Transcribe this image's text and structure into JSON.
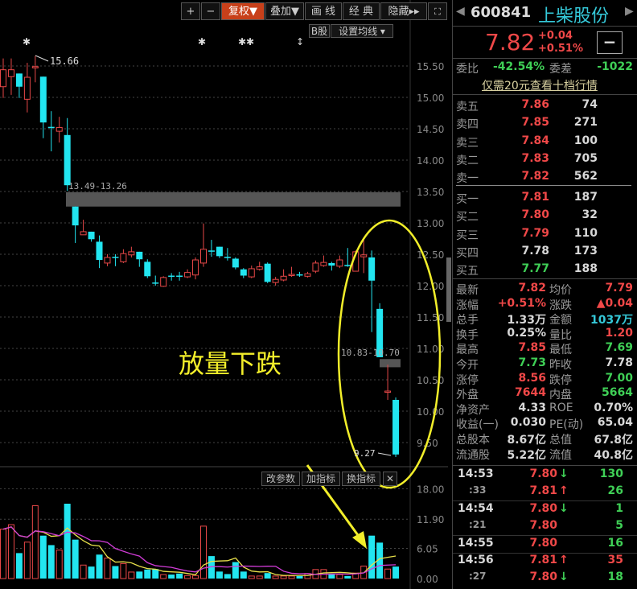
{
  "toolbar": {
    "plus": "+",
    "minus": "−",
    "fuquan": "复权▼",
    "diejia": "叠加▼",
    "huaxian": "画 线",
    "jingdian": "经 典",
    "yincang": "隐藏▸▸",
    "fullscreen_icon": "fullscreen-icon",
    "bgu": "B股",
    "ma_setting": "设置均线 ▾"
  },
  "colors": {
    "up": "#e84848",
    "down": "#22e5f0",
    "ma5": "#e8e04a",
    "ma10": "#d23cd8",
    "annotation": "#f2ee2a",
    "active": "#c8401a"
  },
  "markers": [
    "✱",
    "✱",
    "✱✱",
    "↕"
  ],
  "annotations": {
    "high": "15.66",
    "gap1": "13.49-13.26",
    "gap2": "10.83-10.70",
    "low": "9.27",
    "caption": "放量下跌"
  },
  "volume_buttons": [
    "改参数",
    "加指标",
    "换指标",
    "✕"
  ],
  "chart_data": {
    "type": "candlestick",
    "price_axis": [
      "15.50",
      "15.00",
      "14.50",
      "14.00",
      "13.50",
      "13.00",
      "12.50",
      "12.00",
      "11.50",
      "11.00",
      "10.50",
      "10.00",
      "9.50"
    ],
    "ylim": [
      9.2,
      15.9
    ],
    "volume_axis": [
      "18.00",
      "11.90",
      "6.05",
      "0.00"
    ],
    "volume_ylim": [
      0,
      18
    ],
    "gaps": [
      [
        13.49,
        13.26
      ],
      [
        10.83,
        10.7
      ]
    ],
    "ohlc": [
      [
        15.17,
        15.62,
        14.99,
        15.44
      ],
      [
        15.33,
        15.62,
        15.04,
        15.44
      ],
      [
        15.38,
        15.38,
        14.99,
        15.17
      ],
      [
        14.97,
        15.55,
        14.76,
        15.32
      ],
      [
        15.47,
        15.66,
        15.24,
        15.49
      ],
      [
        15.33,
        15.33,
        14.35,
        14.6
      ],
      [
        14.53,
        14.78,
        14.14,
        14.52
      ],
      [
        14.46,
        14.69,
        14.28,
        14.52
      ],
      [
        14.4,
        14.67,
        13.51,
        13.6
      ],
      [
        13.26,
        13.26,
        12.68,
        12.96
      ],
      [
        12.81,
        13.05,
        12.81,
        12.86
      ],
      [
        12.86,
        12.86,
        12.7,
        12.74
      ],
      [
        12.7,
        12.8,
        12.28,
        12.41
      ],
      [
        12.36,
        12.5,
        12.31,
        12.45
      ],
      [
        12.46,
        12.5,
        12.31,
        12.45
      ],
      [
        12.38,
        12.58,
        12.36,
        12.51
      ],
      [
        12.49,
        12.62,
        12.45,
        12.54
      ],
      [
        12.54,
        12.54,
        12.3,
        12.42
      ],
      [
        12.38,
        12.42,
        12.12,
        12.15
      ],
      [
        12.05,
        12.16,
        12.0,
        12.04
      ],
      [
        11.99,
        12.15,
        11.98,
        12.13
      ],
      [
        12.16,
        12.2,
        12.08,
        12.15
      ],
      [
        12.16,
        12.22,
        12.08,
        12.15
      ],
      [
        12.14,
        12.26,
        12.12,
        12.21
      ],
      [
        12.17,
        12.45,
        12.1,
        12.41
      ],
      [
        12.36,
        12.99,
        12.3,
        12.58
      ],
      [
        12.56,
        12.73,
        12.46,
        12.55
      ],
      [
        12.62,
        12.62,
        12.44,
        12.47
      ],
      [
        12.46,
        12.6,
        12.4,
        12.45
      ],
      [
        12.43,
        12.45,
        12.26,
        12.29
      ],
      [
        12.26,
        12.28,
        12.12,
        12.16
      ],
      [
        12.14,
        12.32,
        12.12,
        12.27
      ],
      [
        12.26,
        12.38,
        12.24,
        12.3
      ],
      [
        12.35,
        12.37,
        12.04,
        12.06
      ],
      [
        12.05,
        12.14,
        12.0,
        12.1
      ],
      [
        12.09,
        12.26,
        12.07,
        12.15
      ],
      [
        12.17,
        12.3,
        12.14,
        12.18
      ],
      [
        12.18,
        12.22,
        12.14,
        12.17
      ],
      [
        12.15,
        12.22,
        12.13,
        12.19
      ],
      [
        12.23,
        12.4,
        12.2,
        12.36
      ],
      [
        12.32,
        12.48,
        12.3,
        12.37
      ],
      [
        12.36,
        12.38,
        12.24,
        12.32
      ],
      [
        12.31,
        12.48,
        12.28,
        12.41
      ],
      [
        12.33,
        12.6,
        12.3,
        12.32
      ],
      [
        12.23,
        12.56,
        12.23,
        12.54
      ],
      [
        12.46,
        12.76,
        12.2,
        12.49
      ],
      [
        12.45,
        12.56,
        11.26,
        12.08
      ],
      [
        11.63,
        11.72,
        10.86,
        10.86
      ],
      [
        10.31,
        10.74,
        10.18,
        10.32
      ],
      [
        10.18,
        10.22,
        9.27,
        9.31
      ]
    ],
    "volume": [
      9.9,
      10.8,
      5.1,
      7.3,
      14.6,
      8.6,
      6.7,
      5.7,
      15.0,
      7.8,
      2.7,
      2.4,
      4.8,
      4.1,
      2.5,
      3.0,
      1.3,
      1.4,
      1.8,
      1.9,
      0.8,
      0.8,
      1.0,
      0.6,
      0.6,
      10.5,
      4.5,
      1.4,
      0.9,
      3.3,
      1.4,
      0.5,
      0.5,
      1.1,
      0.5,
      0.5,
      0.5,
      0.5,
      1.0,
      1.8,
      1.8,
      0.8,
      0.8,
      0.5,
      1.1,
      2.5,
      8.6,
      7.2,
      1.9,
      2.4
    ],
    "grid": true
  },
  "quote": {
    "code": "600841",
    "name": "上柴股份",
    "price": "7.82",
    "change": "+0.04",
    "change_pct": "+0.51%",
    "collapse": "−",
    "weibi_label": "委比",
    "weibi": "-42.54%",
    "weicha_label": "委差",
    "weicha": "-1022",
    "promo_link": "仅需20元查看十档行情"
  },
  "order_book": {
    "sell": [
      {
        "label": "卖五",
        "price": "7.86",
        "vol": "74",
        "color": "red"
      },
      {
        "label": "卖四",
        "price": "7.85",
        "vol": "271",
        "color": "red"
      },
      {
        "label": "卖三",
        "price": "7.84",
        "vol": "100",
        "color": "red"
      },
      {
        "label": "卖二",
        "price": "7.83",
        "vol": "705",
        "color": "red"
      },
      {
        "label": "卖一",
        "price": "7.82",
        "vol": "562",
        "color": "red"
      }
    ],
    "buy": [
      {
        "label": "买一",
        "price": "7.81",
        "vol": "187",
        "color": "red"
      },
      {
        "label": "买二",
        "price": "7.80",
        "vol": "32",
        "color": "red"
      },
      {
        "label": "买三",
        "price": "7.79",
        "vol": "110",
        "color": "red"
      },
      {
        "label": "买四",
        "price": "7.78",
        "vol": "173",
        "color": "white"
      },
      {
        "label": "买五",
        "price": "7.77",
        "vol": "188",
        "color": "green"
      }
    ]
  },
  "stats": [
    {
      "l1": "最新",
      "v1": "7.82",
      "c1": "red",
      "l2": "均价",
      "v2": "7.79",
      "c2": "red"
    },
    {
      "l1": "涨幅",
      "v1": "+0.51%",
      "c1": "red",
      "l2": "涨跌",
      "v2": "▲0.04",
      "c2": "red"
    },
    {
      "l1": "总手",
      "v1": "1.33万",
      "c1": "white",
      "l2": "金额",
      "v2": "1037万",
      "c2": "cyan"
    },
    {
      "l1": "换手",
      "v1": "0.25%",
      "c1": "white",
      "l2": "量比",
      "v2": "1.20",
      "c2": "red"
    },
    {
      "l1": "最高",
      "v1": "7.85",
      "c1": "red",
      "l2": "最低",
      "v2": "7.69",
      "c2": "green"
    },
    {
      "l1": "今开",
      "v1": "7.73",
      "c1": "green",
      "l2": "昨收",
      "v2": "7.78",
      "c2": "white"
    },
    {
      "l1": "涨停",
      "v1": "8.56",
      "c1": "red",
      "l2": "跌停",
      "v2": "7.00",
      "c2": "green"
    },
    {
      "l1": "外盘",
      "v1": "7644",
      "c1": "red",
      "l2": "内盘",
      "v2": "5664",
      "c2": "green"
    },
    {
      "l1": "净资产",
      "v1": "4.33",
      "c1": "white",
      "l2": "ROE",
      "v2": "0.70%",
      "c2": "white"
    },
    {
      "l1": "收益(一)",
      "v1": "0.030",
      "c1": "white",
      "l2": "PE(动)",
      "v2": "65.04",
      "c2": "white"
    },
    {
      "l1": "总股本",
      "v1": "8.67亿",
      "c1": "white",
      "l2": "总值",
      "v2": "67.8亿",
      "c2": "white"
    },
    {
      "l1": "流通股",
      "v1": "5.22亿",
      "c1": "white",
      "l2": "流值",
      "v2": "40.8亿",
      "c2": "white"
    }
  ],
  "ticks": [
    {
      "time": "14:53",
      "price": "7.80",
      "arrow": "↓",
      "vol": "130",
      "vc": "green"
    },
    {
      "time": ":33",
      "price": "7.81",
      "arrow": "↑",
      "vol": "26",
      "vc": "green"
    },
    {
      "time": "14:54",
      "price": "7.80",
      "arrow": "↓",
      "vol": "1",
      "vc": "green"
    },
    {
      "time": ":21",
      "price": "7.80",
      "arrow": "",
      "vol": "5",
      "vc": "green"
    },
    {
      "time": "14:55",
      "price": "7.80",
      "arrow": "",
      "vol": "16",
      "vc": "green"
    },
    {
      "time": "14:56",
      "price": "7.81",
      "arrow": "↑",
      "vol": "35",
      "vc": "red"
    },
    {
      "time": ":27",
      "price": "7.80",
      "arrow": "↓",
      "vol": "18",
      "vc": "green"
    }
  ]
}
